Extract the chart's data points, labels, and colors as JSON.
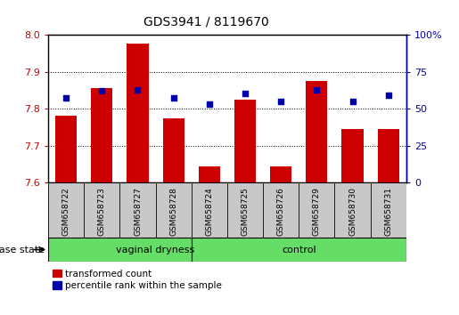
{
  "title": "GDS3941 / 8119670",
  "samples": [
    "GSM658722",
    "GSM658723",
    "GSM658727",
    "GSM658728",
    "GSM658724",
    "GSM658725",
    "GSM658726",
    "GSM658729",
    "GSM658730",
    "GSM658731"
  ],
  "transformed_count": [
    7.78,
    7.855,
    7.975,
    7.775,
    7.645,
    7.825,
    7.645,
    7.875,
    7.745,
    7.745
  ],
  "percentile_rank": [
    57,
    62,
    63,
    57,
    53,
    60,
    55,
    63,
    55,
    59
  ],
  "ylim_left": [
    7.6,
    8.0
  ],
  "ylim_right": [
    0,
    100
  ],
  "yticks_left": [
    7.6,
    7.7,
    7.8,
    7.9,
    8.0
  ],
  "yticks_right": [
    0,
    25,
    50,
    75,
    100
  ],
  "ytick_labels_right": [
    "0",
    "25",
    "50",
    "75",
    "100%"
  ],
  "bar_color": "#CC0000",
  "scatter_color": "#0000AA",
  "bar_width": 0.6,
  "baseline": 7.6,
  "tick_color_left": "#CC0000",
  "tick_color_right": "#0000AA",
  "grid_color": "#000000",
  "background_xtick": "#C8C8C8",
  "background_group": "#66DD66",
  "group_divider_at": 3.5,
  "vaginal_dryness_label": "vaginal dryness",
  "control_label": "control",
  "disease_state_label": "disease state",
  "legend_labels": [
    "transformed count",
    "percentile rank within the sample"
  ],
  "legend_colors": [
    "#CC0000",
    "#0000AA"
  ]
}
